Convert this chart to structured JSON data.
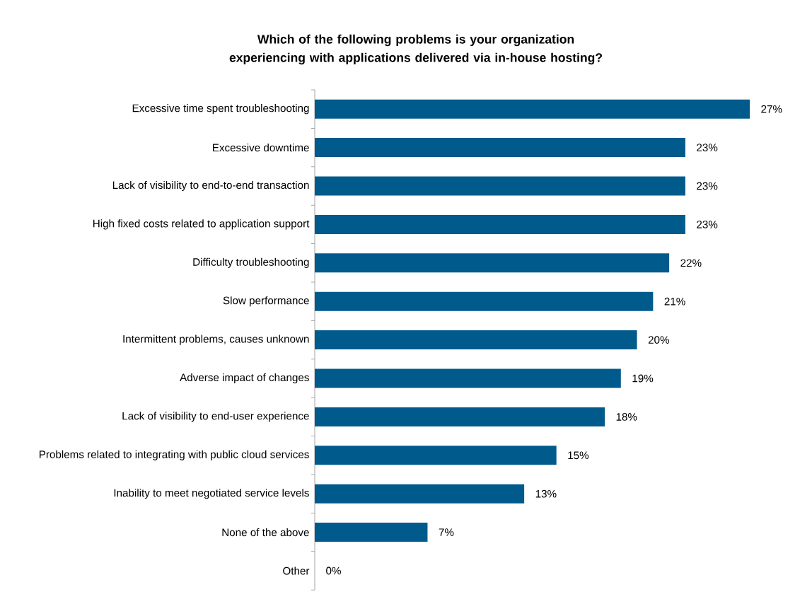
{
  "chart_data": {
    "type": "bar",
    "orientation": "horizontal",
    "title": "Which of the following problems is your organization experiencing with applications delivered via in-house hosting?",
    "categories": [
      "Excessive time spent troubleshooting",
      "Excessive downtime",
      "Lack of visibility to end-to-end transaction",
      "High fixed costs related to application support",
      "Difficulty troubleshooting",
      "Slow performance",
      "Intermittent problems, causes unknown",
      "Adverse impact of changes",
      "Lack of visibility to end-user experience",
      "Problems related to integrating with public cloud services",
      "Inability to meet negotiated service levels",
      "None of the above",
      "Other"
    ],
    "values": [
      27,
      23,
      23,
      23,
      22,
      21,
      20,
      19,
      18,
      15,
      13,
      7,
      0
    ],
    "value_labels": [
      "27%",
      "23%",
      "23%",
      "23%",
      "22%",
      "21%",
      "20%",
      "19%",
      "18%",
      "15%",
      "13%",
      "7%",
      "0%"
    ],
    "color": "#005a8c"
  }
}
